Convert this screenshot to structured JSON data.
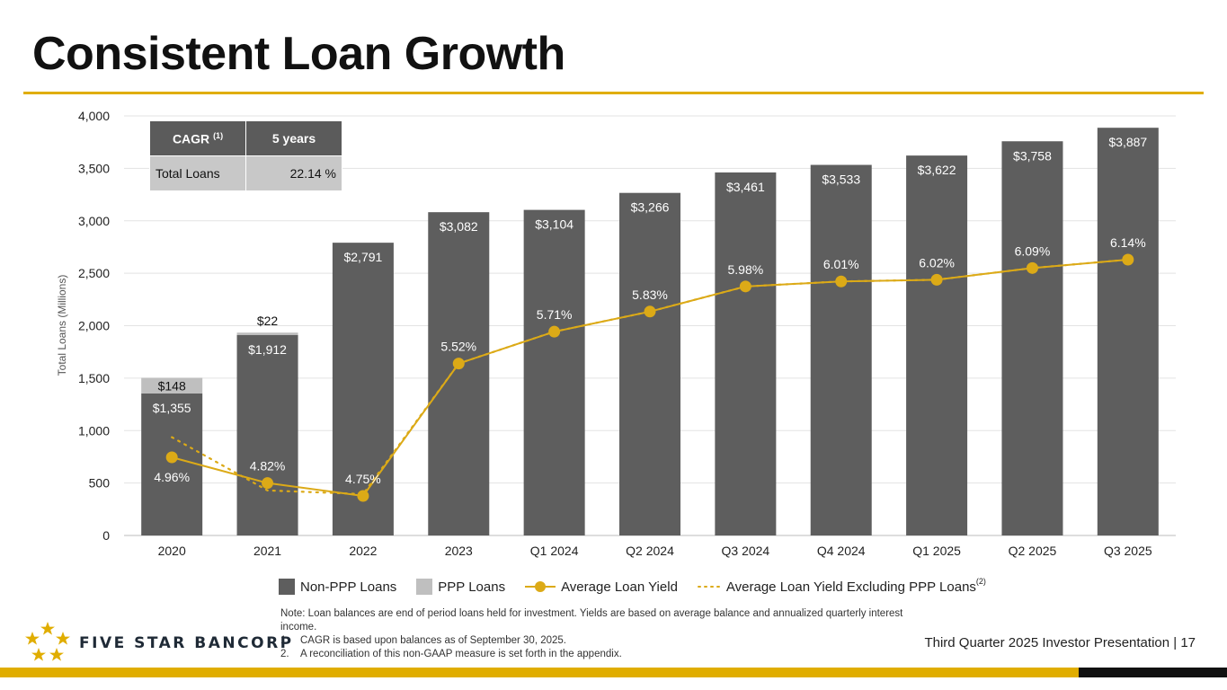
{
  "page": {
    "title": "Consistent Loan Growth",
    "footer": "Third Quarter 2025 Investor Presentation |  17",
    "company_name": "FIVE STAR BANCORP"
  },
  "cagr_table": {
    "header_label": "CAGR",
    "header_sup": "(1)",
    "header_period": "5 years",
    "row_label": "Total Loans",
    "row_value": "22.14 %"
  },
  "legend": {
    "non_ppp": "Non-PPP Loans",
    "ppp": "PPP Loans",
    "avg_yield": "Average Loan Yield",
    "avg_yield_ex_ppp": "Average Loan Yield Excluding PPP Loans",
    "avg_yield_ex_ppp_sup": "(2)"
  },
  "notes": {
    "main": "Note: Loan balances are end of period loans held for investment. Yields are based on average balance and annualized quarterly interest income.",
    "n1_num": "1.",
    "n1": "CAGR is based upon balances as of September 30, 2025.",
    "n2_num": "2.",
    "n2": "A reconciliation of this non-GAAP measure is set forth in the appendix."
  },
  "colors": {
    "non_ppp": "#5e5e5e",
    "ppp": "#bfbfbf",
    "yield_line": "#dcaa17",
    "accent": "#e0ad00"
  },
  "chart_data": {
    "type": "bar",
    "ylabel": "Total Loans (Millions)",
    "ylim": [
      0,
      4000
    ],
    "yticks": [
      0,
      500,
      1000,
      1500,
      2000,
      2500,
      3000,
      3500,
      4000
    ],
    "ytick_labels": [
      "0",
      "500",
      "1,000",
      "1,500",
      "2,000",
      "2,500",
      "3,000",
      "3,500",
      "4,000"
    ],
    "grid": true,
    "legend_position": "bottom",
    "categories": [
      "2020",
      "2021",
      "2022",
      "2023",
      "Q1 2024",
      "Q2 2024",
      "Q3 2024",
      "Q4 2024",
      "Q1 2025",
      "Q2 2025",
      "Q3 2025"
    ],
    "series": [
      {
        "name": "Non-PPP Loans",
        "values": [
          1355,
          1912,
          2791,
          3082,
          3104,
          3266,
          3461,
          3533,
          3622,
          3758,
          3887
        ],
        "labels": [
          "$1,355",
          "$1,912",
          "$2,791",
          "$3,082",
          "$3,104",
          "$3,266",
          "$3,461",
          "$3,533",
          "$3,622",
          "$3,758",
          "$3,887"
        ]
      },
      {
        "name": "PPP Loans",
        "values": [
          148,
          22,
          0,
          0,
          0,
          0,
          0,
          0,
          0,
          0,
          0
        ],
        "labels": [
          "$148",
          "$22",
          "",
          "",
          "",
          "",
          "",
          "",
          "",
          "",
          ""
        ]
      },
      {
        "name": "Average Loan Yield",
        "values": [
          4.96,
          4.82,
          4.75,
          5.52,
          5.71,
          5.83,
          5.98,
          6.01,
          6.02,
          6.09,
          6.14
        ],
        "labels": [
          "4.96%",
          "4.82%",
          "4.75%",
          "5.52%",
          "5.71%",
          "5.83%",
          "5.98%",
          "6.01%",
          "6.02%",
          "6.09%",
          "6.14%"
        ]
      },
      {
        "name": "Average Loan Yield Excluding PPP Loans",
        "values": [
          5.08,
          4.78,
          4.76,
          5.52,
          5.71,
          5.83,
          5.98,
          6.01,
          6.02,
          6.09,
          6.14
        ]
      }
    ]
  }
}
